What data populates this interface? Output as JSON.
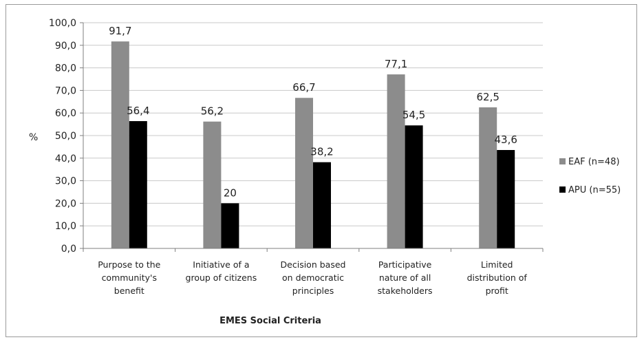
{
  "chart_data": {
    "type": "bar",
    "title": "",
    "xlabel": "EMES Social Criteria",
    "ylabel": "%",
    "ylim": [
      0,
      100
    ],
    "ytick_step": 10,
    "ytick_labels": [
      "0,0",
      "10,0",
      "20,0",
      "30,0",
      "40,0",
      "50,0",
      "60,0",
      "70,0",
      "80,0",
      "90,0",
      "100,0"
    ],
    "grid": true,
    "legend_position": "right",
    "categories": [
      [
        "Purpose to the",
        "community's",
        "benefit"
      ],
      [
        "Initiative of a",
        "group of citizens"
      ],
      [
        "Decision based",
        "on democratic",
        "principles"
      ],
      [
        "Participative",
        "nature of all",
        "stakeholders"
      ],
      [
        "Limited",
        "distribution of",
        "profit"
      ]
    ],
    "series": [
      {
        "name": "EAF (n=48)",
        "color": "#8c8c8c",
        "values": [
          91.7,
          56.2,
          66.7,
          77.1,
          62.5
        ],
        "labels": [
          "91,7",
          "56,2",
          "66,7",
          "77,1",
          "62,5"
        ]
      },
      {
        "name": "APU (n=55)",
        "color": "#000000",
        "values": [
          56.4,
          20,
          38.2,
          54.5,
          43.6
        ],
        "labels": [
          "56,4",
          "20",
          "38,2",
          "54,5",
          "43,6"
        ]
      }
    ]
  }
}
